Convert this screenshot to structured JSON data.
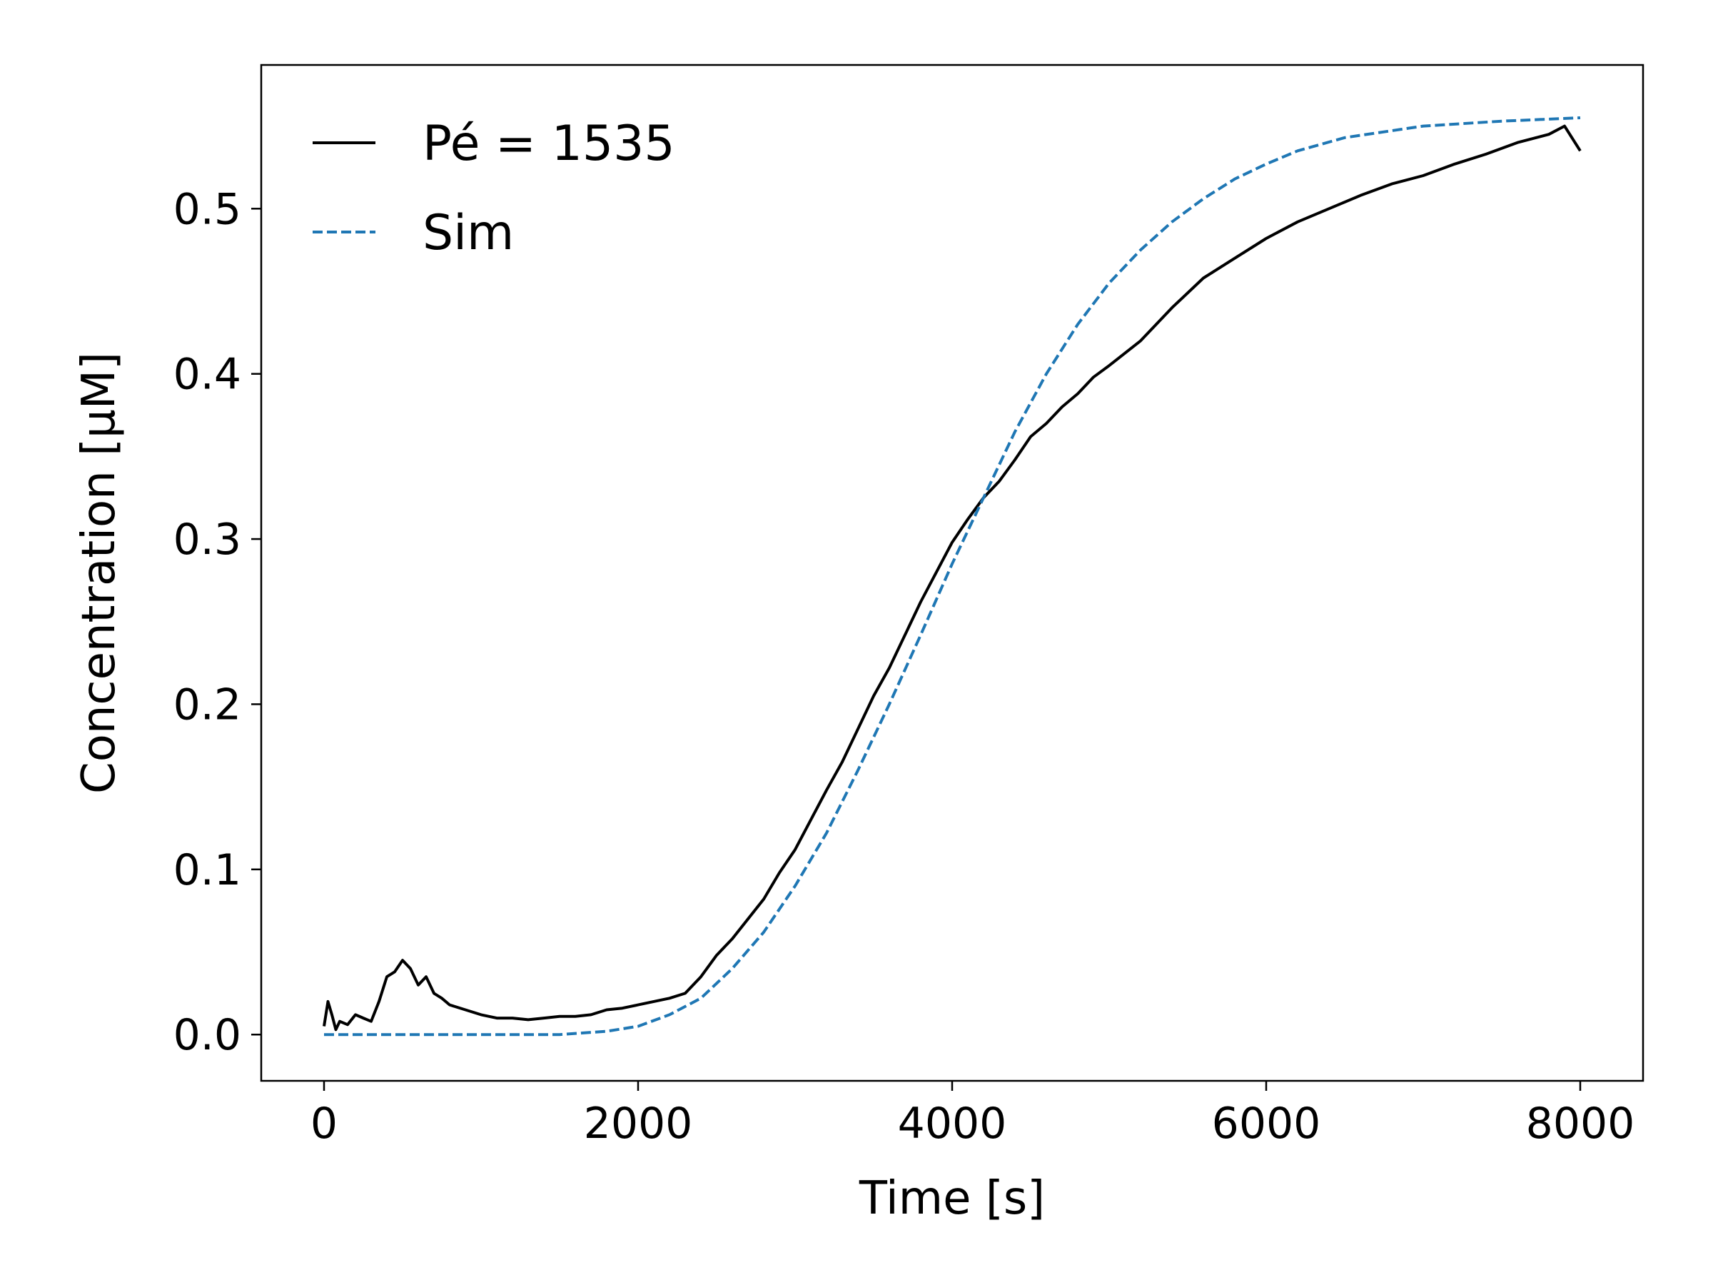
{
  "chart_data": {
    "type": "line",
    "xlabel": "Time [s]",
    "ylabel": "Concentration [μM]",
    "xlim": [
      -400,
      8400
    ],
    "ylim": [
      -0.028,
      0.587
    ],
    "x_ticks": [
      {
        "value": 0,
        "label": "0"
      },
      {
        "value": 2000,
        "label": "2000"
      },
      {
        "value": 4000,
        "label": "4000"
      },
      {
        "value": 6000,
        "label": "6000"
      },
      {
        "value": 8000,
        "label": "8000"
      }
    ],
    "y_ticks": [
      {
        "value": 0.0,
        "label": "0.0"
      },
      {
        "value": 0.1,
        "label": "0.1"
      },
      {
        "value": 0.2,
        "label": "0.2"
      },
      {
        "value": 0.3,
        "label": "0.3"
      },
      {
        "value": 0.4,
        "label": "0.4"
      },
      {
        "value": 0.5,
        "label": "0.5"
      }
    ],
    "grid": false,
    "legend_position": "top-left",
    "series": [
      {
        "name": "Pé = 1535",
        "color": "#000000",
        "dash": "solid",
        "x": [
          0,
          25,
          50,
          75,
          100,
          150,
          200,
          250,
          300,
          350,
          400,
          450,
          500,
          550,
          600,
          650,
          700,
          750,
          800,
          900,
          1000,
          1100,
          1200,
          1300,
          1400,
          1500,
          1600,
          1700,
          1800,
          1900,
          2000,
          2100,
          2200,
          2300,
          2400,
          2500,
          2600,
          2700,
          2800,
          2900,
          3000,
          3100,
          3200,
          3300,
          3400,
          3500,
          3600,
          3700,
          3800,
          3900,
          4000,
          4100,
          4200,
          4300,
          4400,
          4500,
          4600,
          4700,
          4800,
          4900,
          5000,
          5200,
          5400,
          5600,
          5800,
          6000,
          6200,
          6400,
          6600,
          6800,
          7000,
          7200,
          7400,
          7600,
          7800,
          7900,
          8000
        ],
        "y": [
          0.005,
          0.02,
          0.012,
          0.003,
          0.008,
          0.006,
          0.012,
          0.01,
          0.008,
          0.02,
          0.035,
          0.038,
          0.045,
          0.04,
          0.03,
          0.035,
          0.025,
          0.022,
          0.018,
          0.015,
          0.012,
          0.01,
          0.01,
          0.009,
          0.01,
          0.011,
          0.011,
          0.012,
          0.015,
          0.016,
          0.018,
          0.02,
          0.022,
          0.025,
          0.035,
          0.048,
          0.058,
          0.07,
          0.082,
          0.098,
          0.112,
          0.13,
          0.148,
          0.165,
          0.185,
          0.205,
          0.222,
          0.242,
          0.262,
          0.28,
          0.298,
          0.312,
          0.325,
          0.335,
          0.348,
          0.362,
          0.37,
          0.38,
          0.388,
          0.398,
          0.405,
          0.42,
          0.44,
          0.458,
          0.47,
          0.482,
          0.492,
          0.5,
          0.508,
          0.515,
          0.52,
          0.527,
          0.533,
          0.54,
          0.545,
          0.55,
          0.535
        ]
      },
      {
        "name": "Sim",
        "color": "#1f77b4",
        "dash": "dashed",
        "x": [
          0,
          500,
          1000,
          1500,
          1800,
          2000,
          2200,
          2400,
          2600,
          2800,
          3000,
          3200,
          3400,
          3600,
          3800,
          4000,
          4200,
          4400,
          4600,
          4800,
          5000,
          5200,
          5400,
          5600,
          5800,
          6000,
          6200,
          6500,
          7000,
          7500,
          8000
        ],
        "y": [
          0.0,
          0.0,
          0.0,
          0.0,
          0.002,
          0.005,
          0.012,
          0.022,
          0.04,
          0.062,
          0.09,
          0.122,
          0.16,
          0.2,
          0.242,
          0.285,
          0.325,
          0.365,
          0.4,
          0.43,
          0.455,
          0.475,
          0.492,
          0.506,
          0.518,
          0.527,
          0.535,
          0.543,
          0.55,
          0.553,
          0.555
        ]
      }
    ]
  }
}
